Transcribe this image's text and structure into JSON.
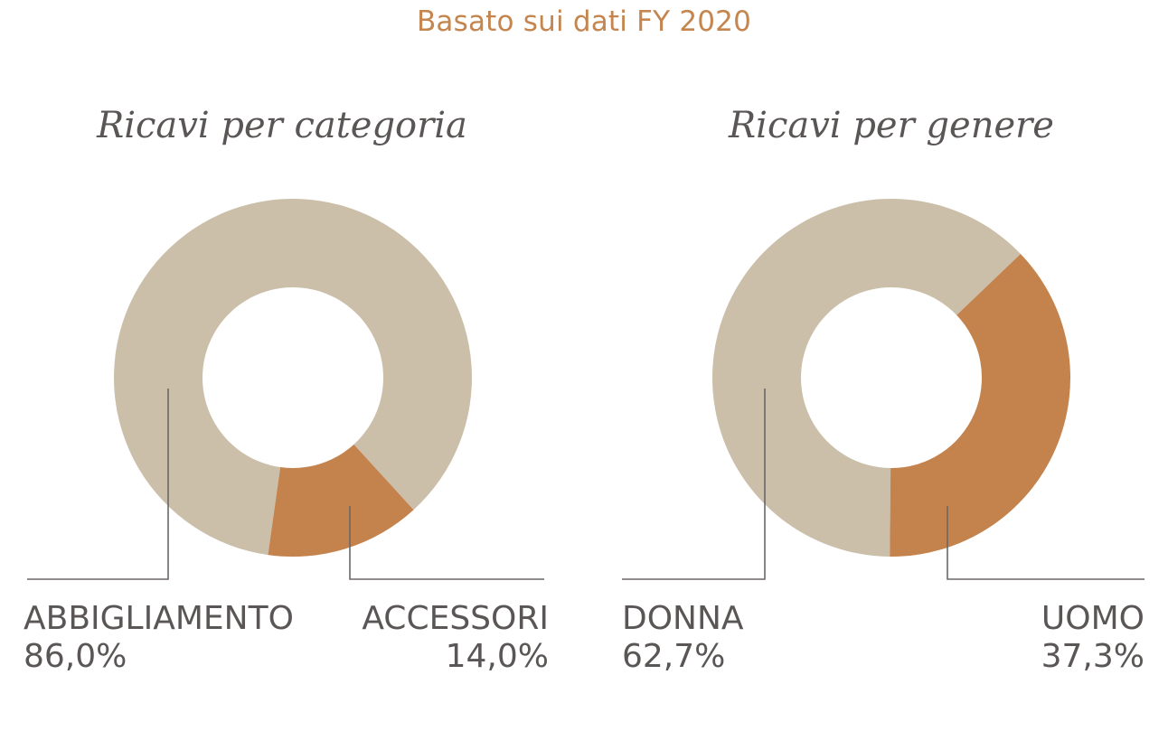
{
  "subtitle": "Basato sui dati FY 2020",
  "colors": {
    "primary": "#cbbfaa",
    "accent": "#c4824c",
    "text": "#5a5655",
    "subtitle": "#c4854e",
    "leader": "#6b6767"
  },
  "chart_data": [
    {
      "type": "pie",
      "donut": true,
      "title": "Ricavi per categoria",
      "slices": [
        {
          "label": "ABBIGLIAMENTO",
          "value": 86.0,
          "display": "86,0%"
        },
        {
          "label": "ACCESSORI",
          "value": 14.0,
          "display": "14,0%"
        }
      ]
    },
    {
      "type": "pie",
      "donut": true,
      "title": "Ricavi per genere",
      "slices": [
        {
          "label": "DONNA",
          "value": 62.7,
          "display": "62,7%"
        },
        {
          "label": "UOMO",
          "value": 37.3,
          "display": "37,3%"
        }
      ]
    }
  ]
}
